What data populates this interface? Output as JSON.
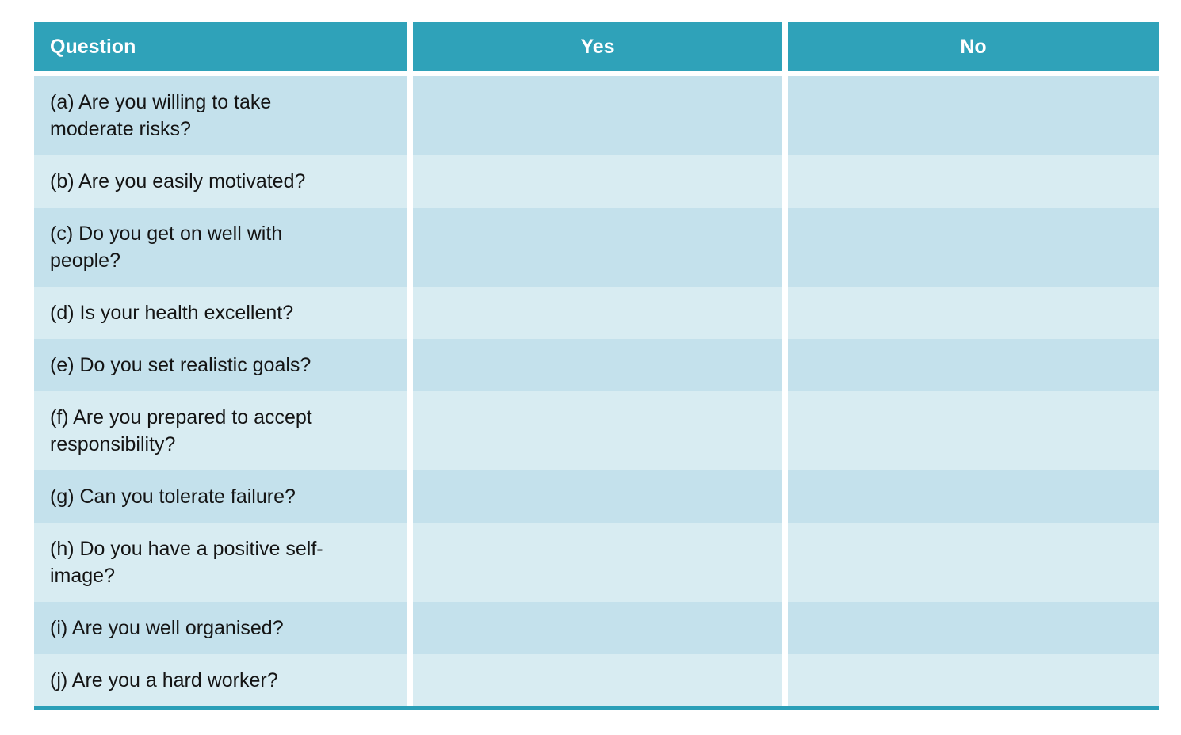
{
  "table": {
    "columns": [
      {
        "label": "Question"
      },
      {
        "label": "Yes"
      },
      {
        "label": "No"
      }
    ],
    "rows": [
      {
        "question": "(a) Are you willing to take moderate risks?",
        "yes": "",
        "no": ""
      },
      {
        "question": "(b) Are you easily motivated?",
        "yes": "",
        "no": ""
      },
      {
        "question": "(c) Do you get on well with people?",
        "yes": "",
        "no": ""
      },
      {
        "question": "(d) Is your health excellent?",
        "yes": "",
        "no": ""
      },
      {
        "question": "(e) Do you set realistic goals?",
        "yes": "",
        "no": ""
      },
      {
        "question": "(f) Are you prepared to accept responsibility?",
        "yes": "",
        "no": ""
      },
      {
        "question": "(g) Can you tolerate failure?",
        "yes": "",
        "no": ""
      },
      {
        "question": "(h) Do you have a positive self-image?",
        "yes": "",
        "no": ""
      },
      {
        "question": "(i) Are you well organised?",
        "yes": "",
        "no": ""
      },
      {
        "question": "(j) Are you a hard worker?",
        "yes": "",
        "no": ""
      }
    ],
    "colors": {
      "header_bg": "#2fa2b9",
      "row_a": "#c4e1ec",
      "row_b": "#d8ecf2",
      "rule": "#2b9fb8",
      "text": "#141414"
    }
  }
}
